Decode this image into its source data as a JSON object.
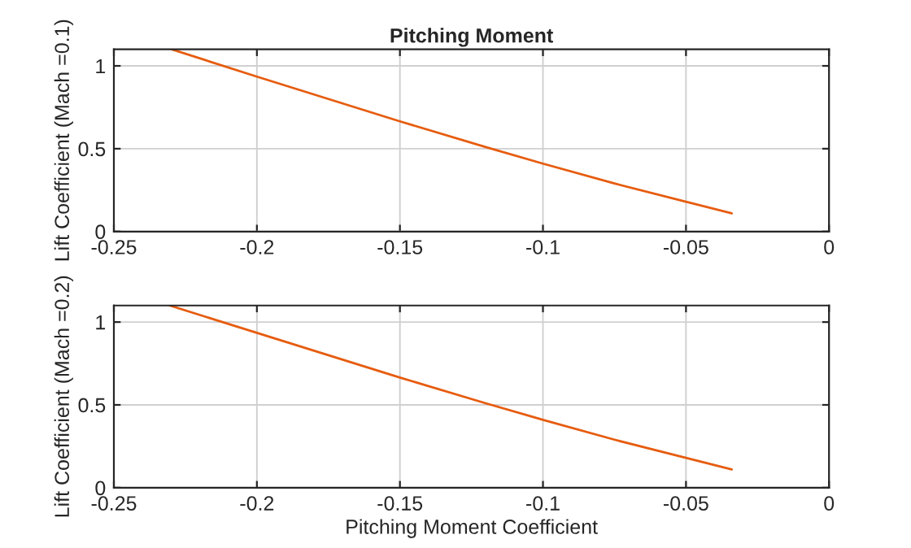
{
  "chart_data": [
    {
      "type": "line",
      "title": "Pitching Moment",
      "ylabel": "Lift Coefficient (Mach =0.1)",
      "x": [
        -0.2298,
        -0.2,
        -0.175,
        -0.15,
        -0.12,
        -0.1,
        -0.075,
        -0.05,
        -0.034
      ],
      "series": [
        {
          "color": "#e65c0f",
          "values": [
            1.1,
            0.935,
            0.8,
            0.665,
            0.51,
            0.41,
            0.29,
            0.18,
            0.11
          ]
        }
      ],
      "xlim": [
        -0.25,
        0
      ],
      "xticks": [
        -0.25,
        -0.2,
        -0.15,
        -0.1,
        -0.05,
        0
      ],
      "ylim": [
        0,
        1.1
      ],
      "yticks": [
        0,
        0.5,
        1
      ],
      "grid": true,
      "legend": false
    },
    {
      "type": "line",
      "xlabel": "Pitching Moment Coefficient",
      "ylabel": "Lift Coefficient (Mach =0.2)",
      "x": [
        -0.2305,
        -0.2,
        -0.175,
        -0.15,
        -0.12,
        -0.1,
        -0.075,
        -0.05,
        -0.034
      ],
      "series": [
        {
          "color": "#e65c0f",
          "values": [
            1.1,
            0.935,
            0.8,
            0.665,
            0.51,
            0.41,
            0.29,
            0.18,
            0.11
          ]
        }
      ],
      "xlim": [
        -0.25,
        0
      ],
      "xticks": [
        -0.25,
        -0.2,
        -0.15,
        -0.1,
        -0.05,
        0
      ],
      "ylim": [
        0,
        1.1
      ],
      "yticks": [
        0,
        0.5,
        1
      ],
      "grid": true,
      "legend": false
    }
  ]
}
